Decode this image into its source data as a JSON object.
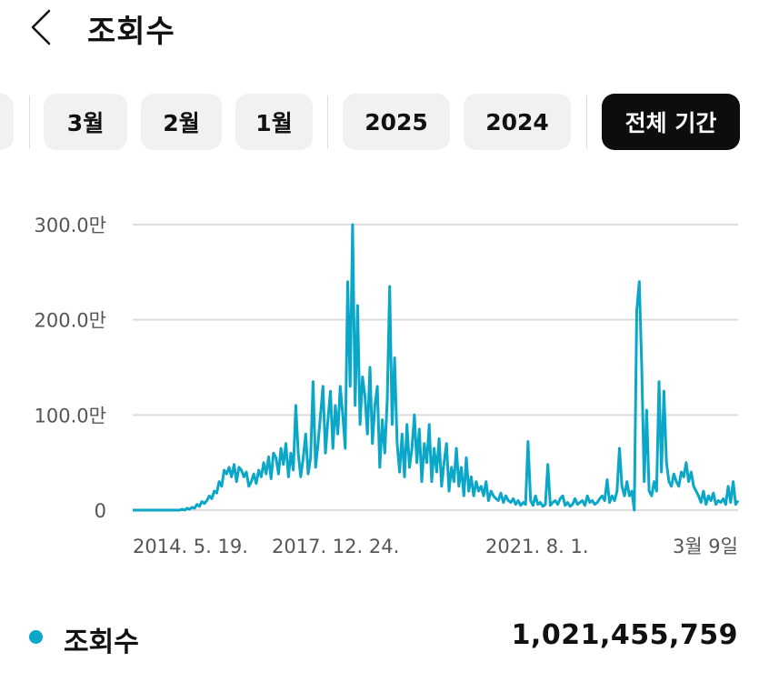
{
  "header": {
    "title": "조회수",
    "back_icon": "chevron-left-icon"
  },
  "filters": {
    "items": [
      "3월",
      "2월",
      "1월",
      "2025",
      "2024",
      "전체 기간"
    ],
    "selected": "전체 기간"
  },
  "chart_data": {
    "type": "line",
    "color": "#0aa7c9",
    "ylim": [
      0,
      3000000
    ],
    "y_ticks": [
      "300.0만",
      "200.0만",
      "100.0만",
      "0"
    ],
    "x_ticks": [
      "2014. 5. 19.",
      "2017. 12. 24.",
      "2021. 8. 1.",
      "3월 9일"
    ],
    "series": [
      {
        "values": [
          0,
          0,
          0,
          0,
          0,
          0,
          0,
          0,
          0,
          0,
          0,
          0,
          0,
          0,
          0,
          0,
          0,
          0,
          0,
          0,
          10000,
          0,
          20000,
          10000,
          30000,
          20000,
          60000,
          40000,
          90000,
          70000,
          100000,
          150000,
          120000,
          200000,
          180000,
          300000,
          250000,
          420000,
          380000,
          450000,
          350000,
          480000,
          300000,
          450000,
          420000,
          350000,
          400000,
          250000,
          300000,
          380000,
          280000,
          420000,
          350000,
          500000,
          380000,
          560000,
          330000,
          600000,
          550000,
          380000,
          650000,
          480000,
          700000,
          350000,
          600000,
          420000,
          1100000,
          600000,
          350000,
          550000,
          800000,
          380000,
          550000,
          1350000,
          450000,
          700000,
          1000000,
          1300000,
          600000,
          950000,
          1250000,
          650000,
          1100000,
          800000,
          1300000,
          1000000,
          650000,
          2400000,
          1300000,
          3000000,
          1100000,
          2150000,
          900000,
          1400000,
          1200000,
          800000,
          1500000,
          700000,
          1100000,
          1300000,
          450000,
          950000,
          600000,
          1150000,
          2350000,
          900000,
          1600000,
          700000,
          400000,
          800000,
          350000,
          900000,
          450000,
          650000,
          1000000,
          500000,
          850000,
          300000,
          700000,
          500000,
          900000,
          300000,
          650000,
          400000,
          750000,
          250000,
          500000,
          700000,
          200000,
          450000,
          300000,
          650000,
          250000,
          450000,
          150000,
          550000,
          200000,
          350000,
          150000,
          300000,
          200000,
          250000,
          150000,
          300000,
          100000,
          200000,
          150000,
          120000,
          100000,
          180000,
          80000,
          150000,
          100000,
          80000,
          120000,
          60000,
          100000,
          50000,
          80000,
          60000,
          720000,
          100000,
          50000,
          150000,
          60000,
          80000,
          40000,
          60000,
          480000,
          50000,
          80000,
          100000,
          60000,
          120000,
          150000,
          50000,
          80000,
          40000,
          60000,
          120000,
          60000,
          80000,
          100000,
          50000,
          150000,
          80000,
          100000,
          60000,
          80000,
          120000,
          150000,
          100000,
          320000,
          80000,
          150000,
          100000,
          200000,
          650000,
          250000,
          150000,
          300000,
          150000,
          200000,
          0,
          2100000,
          2400000,
          1500000,
          300000,
          1050000,
          200000,
          150000,
          300000,
          200000,
          1350000,
          400000,
          1250000,
          500000,
          300000,
          250000,
          380000,
          300000,
          250000,
          400000,
          350000,
          500000,
          300000,
          400000,
          250000,
          200000,
          150000,
          80000,
          200000,
          60000,
          150000,
          100000,
          180000,
          60000,
          100000,
          80000,
          120000,
          60000,
          250000,
          80000,
          300000,
          60000,
          100000
        ]
      }
    ]
  },
  "legend": {
    "label": "조회수",
    "value": "1,021,455,759",
    "dot_color": "#0aa7c9"
  }
}
